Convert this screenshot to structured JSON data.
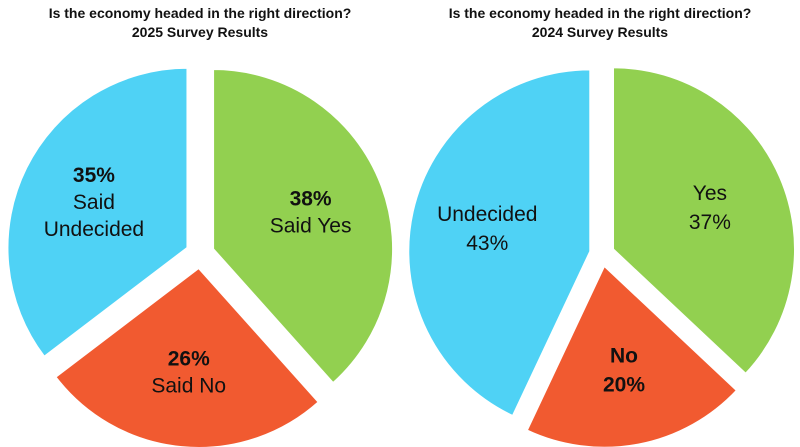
{
  "chart_data": [
    {
      "type": "pie",
      "title": "Is the economy headed in the right direction?",
      "subtitle": "2025 Survey Results",
      "slices": [
        {
          "name": "Said Yes",
          "value": 38,
          "label_pct": "38%",
          "color": "#92d050"
        },
        {
          "name": "Said No",
          "value": 26,
          "label_pct": "26%",
          "color": "#f15a30"
        },
        {
          "name": "Said Undecided",
          "value": 35,
          "label_pct": "35%",
          "color": "#4fd2f5"
        }
      ],
      "label_lines": [
        [
          "38%",
          "Said Yes"
        ],
        [
          "26%",
          "Said No"
        ],
        [
          "35%",
          "Said",
          "Undecided"
        ]
      ],
      "bold_lines": [
        [
          0
        ],
        [
          0
        ],
        [
          0
        ]
      ]
    },
    {
      "type": "pie",
      "title": "Is the economy headed in the right direction?",
      "subtitle": "2024 Survey Results",
      "slices": [
        {
          "name": "Yes",
          "value": 37,
          "label_pct": "37%",
          "color": "#92d050"
        },
        {
          "name": "No",
          "value": 20,
          "label_pct": "20%",
          "color": "#f15a30"
        },
        {
          "name": "Undecided",
          "value": 43,
          "label_pct": "43%",
          "color": "#4fd2f5"
        }
      ],
      "label_lines": [
        [
          "Yes",
          "37%"
        ],
        [
          "No",
          "20%"
        ],
        [
          "Undecided",
          "43%"
        ]
      ],
      "bold_lines": [
        [],
        [
          0,
          1
        ],
        []
      ]
    }
  ]
}
